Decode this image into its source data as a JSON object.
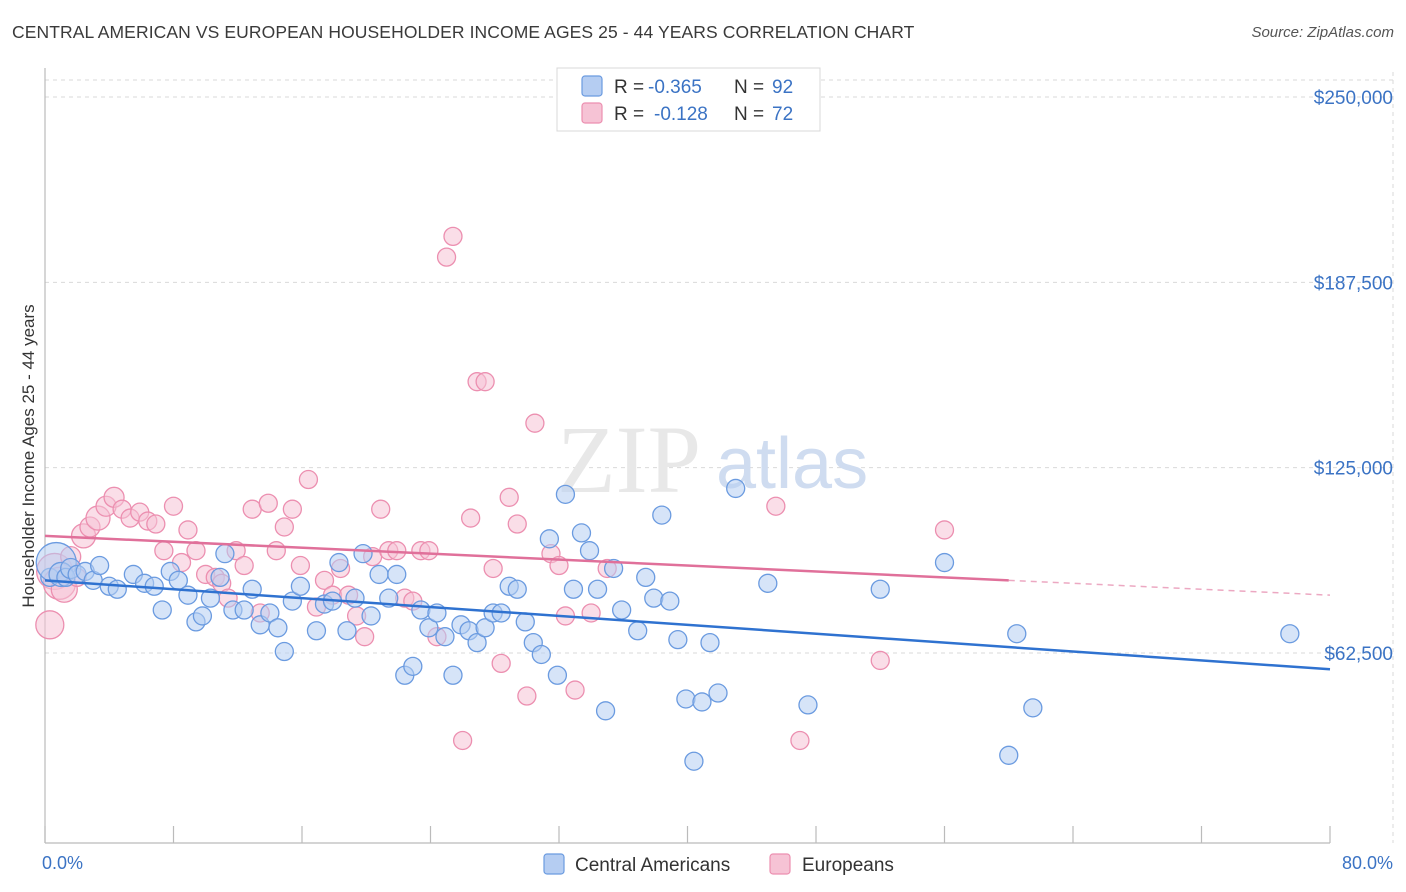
{
  "title": "CENTRAL AMERICAN VS EUROPEAN HOUSEHOLDER INCOME AGES 25 - 44 YEARS CORRELATION CHART",
  "source": "Source: ZipAtlas.com",
  "watermark": {
    "zip": "ZIP",
    "atlas": "atlas"
  },
  "chart_data": {
    "type": "scatter",
    "title": "CENTRAL AMERICAN VS EUROPEAN HOUSEHOLDER INCOME AGES 25 - 44 YEARS CORRELATION CHART",
    "xlabel": "",
    "ylabel": "Householder Income Ages 25 - 44 years",
    "xlim": [
      0,
      80
    ],
    "ylim": [
      0,
      255000
    ],
    "x_tick_labels": [
      "0.0%",
      "80.0%"
    ],
    "y_ticks": [
      62500,
      125000,
      187500,
      250000
    ],
    "y_tick_labels": [
      "$62,500",
      "$125,000",
      "$187,500",
      "$250,000"
    ],
    "grid": true,
    "legend": {
      "position": "top-center",
      "entries": [
        {
          "r_label": "R =",
          "r_value": "-0.365",
          "n_label": "N =",
          "n_value": "92"
        },
        {
          "r_label": "R =",
          "r_value": "-0.128",
          "n_label": "N =",
          "n_value": 72
        }
      ]
    },
    "series": [
      {
        "name": "Central Americans",
        "color": "#6b9be0",
        "fill": "#b5cdf2",
        "line_color": "#2f72d0",
        "trend": {
          "x": [
            0,
            80
          ],
          "y": [
            87000,
            57000
          ],
          "solid_to": 80
        },
        "points": [
          [
            0.3,
            88000,
            9
          ],
          [
            0.7,
            93000,
            20
          ],
          [
            1.0,
            89000,
            12
          ],
          [
            1.3,
            88000,
            9
          ],
          [
            1.6,
            91000,
            10
          ],
          [
            2.0,
            89000,
            9
          ],
          [
            2.5,
            90000,
            9
          ],
          [
            3.0,
            87000,
            9
          ],
          [
            3.4,
            92000,
            9
          ],
          [
            4.0,
            85000,
            9
          ],
          [
            4.5,
            84000,
            9
          ],
          [
            5.5,
            89000,
            9
          ],
          [
            6.2,
            86000,
            9
          ],
          [
            6.8,
            85000,
            9
          ],
          [
            7.3,
            77000,
            9
          ],
          [
            7.8,
            90000,
            9
          ],
          [
            8.3,
            87000,
            9
          ],
          [
            8.9,
            82000,
            9
          ],
          [
            9.4,
            73000,
            9
          ],
          [
            9.8,
            75000,
            9
          ],
          [
            10.3,
            81000,
            9
          ],
          [
            10.9,
            88000,
            9
          ],
          [
            11.2,
            96000,
            9
          ],
          [
            11.7,
            77000,
            9
          ],
          [
            12.4,
            77000,
            9
          ],
          [
            12.9,
            84000,
            9
          ],
          [
            13.4,
            72000,
            9
          ],
          [
            14.0,
            76000,
            9
          ],
          [
            14.5,
            71000,
            9
          ],
          [
            14.9,
            63000,
            9
          ],
          [
            15.4,
            80000,
            9
          ],
          [
            15.9,
            85000,
            9
          ],
          [
            16.9,
            70000,
            9
          ],
          [
            17.4,
            79000,
            9
          ],
          [
            17.9,
            80000,
            9
          ],
          [
            18.3,
            93000,
            9
          ],
          [
            18.8,
            70000,
            9
          ],
          [
            19.3,
            81000,
            9
          ],
          [
            19.8,
            96000,
            9
          ],
          [
            20.3,
            75000,
            9
          ],
          [
            20.8,
            89000,
            9
          ],
          [
            21.4,
            81000,
            9
          ],
          [
            21.9,
            89000,
            9
          ],
          [
            22.4,
            55000,
            9
          ],
          [
            22.9,
            58000,
            9
          ],
          [
            23.4,
            77000,
            9
          ],
          [
            23.9,
            71000,
            9
          ],
          [
            24.4,
            76000,
            9
          ],
          [
            24.9,
            68000,
            9
          ],
          [
            25.4,
            55000,
            9
          ],
          [
            25.9,
            72000,
            9
          ],
          [
            26.4,
            70000,
            9
          ],
          [
            26.9,
            66000,
            9
          ],
          [
            27.4,
            71000,
            9
          ],
          [
            27.9,
            76000,
            9
          ],
          [
            28.4,
            76000,
            9
          ],
          [
            28.9,
            85000,
            9
          ],
          [
            29.4,
            84000,
            9
          ],
          [
            29.9,
            73000,
            9
          ],
          [
            30.4,
            66000,
            9
          ],
          [
            30.9,
            62000,
            9
          ],
          [
            31.4,
            101000,
            9
          ],
          [
            31.9,
            55000,
            9
          ],
          [
            32.4,
            116000,
            9
          ],
          [
            32.9,
            84000,
            9
          ],
          [
            33.4,
            103000,
            9
          ],
          [
            33.9,
            97000,
            9
          ],
          [
            34.4,
            84000,
            9
          ],
          [
            34.9,
            43000,
            9
          ],
          [
            35.4,
            91000,
            9
          ],
          [
            35.9,
            77000,
            9
          ],
          [
            36.9,
            70000,
            9
          ],
          [
            37.4,
            88000,
            9
          ],
          [
            37.9,
            81000,
            9
          ],
          [
            38.4,
            109000,
            9
          ],
          [
            38.9,
            80000,
            9
          ],
          [
            39.4,
            67000,
            9
          ],
          [
            39.9,
            47000,
            9
          ],
          [
            40.4,
            26000,
            9
          ],
          [
            40.9,
            46000,
            9
          ],
          [
            41.4,
            66000,
            9
          ],
          [
            41.9,
            49000,
            9
          ],
          [
            43.0,
            118000,
            9
          ],
          [
            45.0,
            86000,
            9
          ],
          [
            47.5,
            45000,
            9
          ],
          [
            52.0,
            84000,
            9
          ],
          [
            56.0,
            93000,
            9
          ],
          [
            60.5,
            69000,
            9
          ],
          [
            60.0,
            28000,
            9
          ],
          [
            61.5,
            44000,
            9
          ],
          [
            77.5,
            69000,
            9
          ]
        ]
      },
      {
        "name": "Europeans",
        "color": "#ec8fb0",
        "fill": "#f6c3d5",
        "line_color": "#e0709a",
        "trend": {
          "x": [
            0,
            80
          ],
          "y": [
            102000,
            82000
          ],
          "solid_to": 60
        },
        "points": [
          [
            0.3,
            72000,
            14
          ],
          [
            0.6,
            90000,
            18
          ],
          [
            0.9,
            86000,
            16
          ],
          [
            1.2,
            84000,
            13
          ],
          [
            1.6,
            95000,
            10
          ],
          [
            2.0,
            88000,
            9
          ],
          [
            2.4,
            102000,
            12
          ],
          [
            2.8,
            105000,
            10
          ],
          [
            3.3,
            108000,
            12
          ],
          [
            3.8,
            112000,
            10
          ],
          [
            4.3,
            115000,
            10
          ],
          [
            4.8,
            111000,
            9
          ],
          [
            5.3,
            108000,
            9
          ],
          [
            5.9,
            110000,
            9
          ],
          [
            6.4,
            107000,
            9
          ],
          [
            6.9,
            106000,
            9
          ],
          [
            7.4,
            97000,
            9
          ],
          [
            8.0,
            112000,
            9
          ],
          [
            8.5,
            93000,
            9
          ],
          [
            8.9,
            104000,
            9
          ],
          [
            9.4,
            97000,
            9
          ],
          [
            10.0,
            89000,
            9
          ],
          [
            10.6,
            88000,
            9
          ],
          [
            11.0,
            86000,
            9
          ],
          [
            11.4,
            81000,
            9
          ],
          [
            11.9,
            97000,
            9
          ],
          [
            12.4,
            92000,
            9
          ],
          [
            12.9,
            111000,
            9
          ],
          [
            13.4,
            76000,
            9
          ],
          [
            13.9,
            113000,
            9
          ],
          [
            14.4,
            97000,
            9
          ],
          [
            14.9,
            105000,
            9
          ],
          [
            15.4,
            111000,
            9
          ],
          [
            15.9,
            92000,
            9
          ],
          [
            16.4,
            121000,
            9
          ],
          [
            16.9,
            78000,
            9
          ],
          [
            17.4,
            87000,
            9
          ],
          [
            17.9,
            82000,
            9
          ],
          [
            18.4,
            91000,
            9
          ],
          [
            18.9,
            82000,
            9
          ],
          [
            19.4,
            75000,
            9
          ],
          [
            19.9,
            68000,
            9
          ],
          [
            20.4,
            95000,
            9
          ],
          [
            20.9,
            111000,
            9
          ],
          [
            21.4,
            97000,
            9
          ],
          [
            21.9,
            97000,
            9
          ],
          [
            22.4,
            81000,
            9
          ],
          [
            22.9,
            80000,
            9
          ],
          [
            23.4,
            97000,
            9
          ],
          [
            23.9,
            97000,
            9
          ],
          [
            24.4,
            68000,
            9
          ],
          [
            25.0,
            196000,
            9
          ],
          [
            25.4,
            203000,
            9
          ],
          [
            26.0,
            33000,
            9
          ],
          [
            26.5,
            108000,
            9
          ],
          [
            26.9,
            154000,
            9
          ],
          [
            27.4,
            154000,
            9
          ],
          [
            27.9,
            91000,
            9
          ],
          [
            28.4,
            59000,
            9
          ],
          [
            28.9,
            115000,
            9
          ],
          [
            29.4,
            106000,
            9
          ],
          [
            30.0,
            48000,
            9
          ],
          [
            30.5,
            140000,
            9
          ],
          [
            31.5,
            96000,
            9
          ],
          [
            32.0,
            92000,
            9
          ],
          [
            32.4,
            75000,
            9
          ],
          [
            33.0,
            50000,
            9
          ],
          [
            34.0,
            76000,
            9
          ],
          [
            35.0,
            91000,
            9
          ],
          [
            45.5,
            112000,
            9
          ],
          [
            47.0,
            33000,
            9
          ],
          [
            52.0,
            60000,
            9
          ],
          [
            56.0,
            104000,
            9
          ]
        ]
      }
    ]
  },
  "bottom_legend": [
    {
      "label": "Central Americans"
    },
    {
      "label": "Europeans"
    }
  ]
}
